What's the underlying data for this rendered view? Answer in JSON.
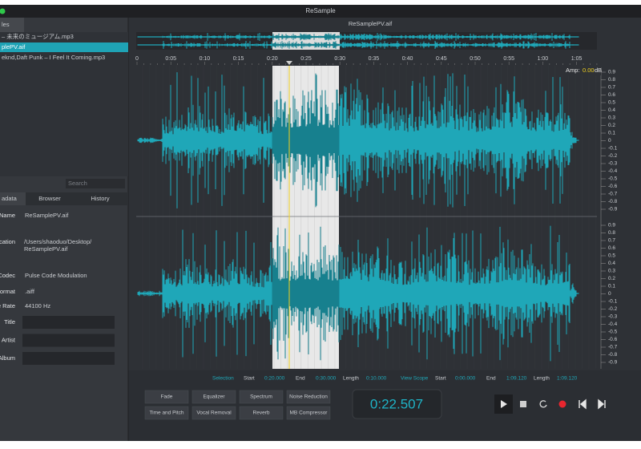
{
  "window": {
    "title": "ReSample"
  },
  "sidebar": {
    "tab": "les",
    "files": [
      "– 未来のミュージアム.mp3",
      "plePV.aif",
      "eknd,Daft Punk – I Feel It Coming.mp3"
    ],
    "search_placeholder": "Search",
    "panel_tabs": [
      "adata",
      "Browser",
      "History"
    ],
    "metadata": [
      {
        "label": "Name",
        "value": "ReSamplePV.aif"
      },
      {
        "label": "cation",
        "value": "/Users/shaoduo/Desktop/ReSamplePV.aif"
      },
      {
        "label": "Codec",
        "value": "Pulse Code Modulation"
      },
      {
        "label": "ormat",
        "value": ".aiff"
      },
      {
        "label": "e Rate",
        "value": "44100 Hz"
      }
    ],
    "fields": [
      "Title",
      "Artist",
      "Album"
    ]
  },
  "editor": {
    "file_name": "ReSamplePV.aif",
    "time_labels": [
      "0",
      "0:05",
      "0:10",
      "0:15",
      "0:20",
      "0:25",
      "0:30",
      "0:35",
      "0:40",
      "0:45",
      "0:50",
      "0:55",
      "1:00",
      "1:05"
    ],
    "amp_label": "Amp:",
    "amp_value": "0.00",
    "amp_unit": "dB",
    "scale_labels": [
      "0.9",
      "0.8",
      "0.7",
      "0.6",
      "0.5",
      "0.4",
      "0.3",
      "0.2",
      "0.1",
      "0",
      "-0.1",
      "-0.2",
      "-0.3",
      "-0.4",
      "-0.5",
      "-0.6",
      "-0.7",
      "-0.8",
      "-0.9"
    ]
  },
  "status": {
    "selection": {
      "title": "Selection",
      "start_label": "Start",
      "start": "0:20.000",
      "end_label": "End",
      "end": "0:30.000",
      "length_label": "Length",
      "length": "0:10.000"
    },
    "view_scope": {
      "title": "View Scope",
      "start_label": "Start",
      "start": "0:00.000",
      "end_label": "End",
      "end": "1:09.120",
      "length_label": "Length",
      "length": "1:09.120"
    }
  },
  "effects": [
    "Fade",
    "Equalizer",
    "Spectrum",
    "Noise Reduction",
    "Time and Pitch",
    "Vocal Removal",
    "Reverb",
    "MB Compressor"
  ],
  "time_display": "0:22.507"
}
